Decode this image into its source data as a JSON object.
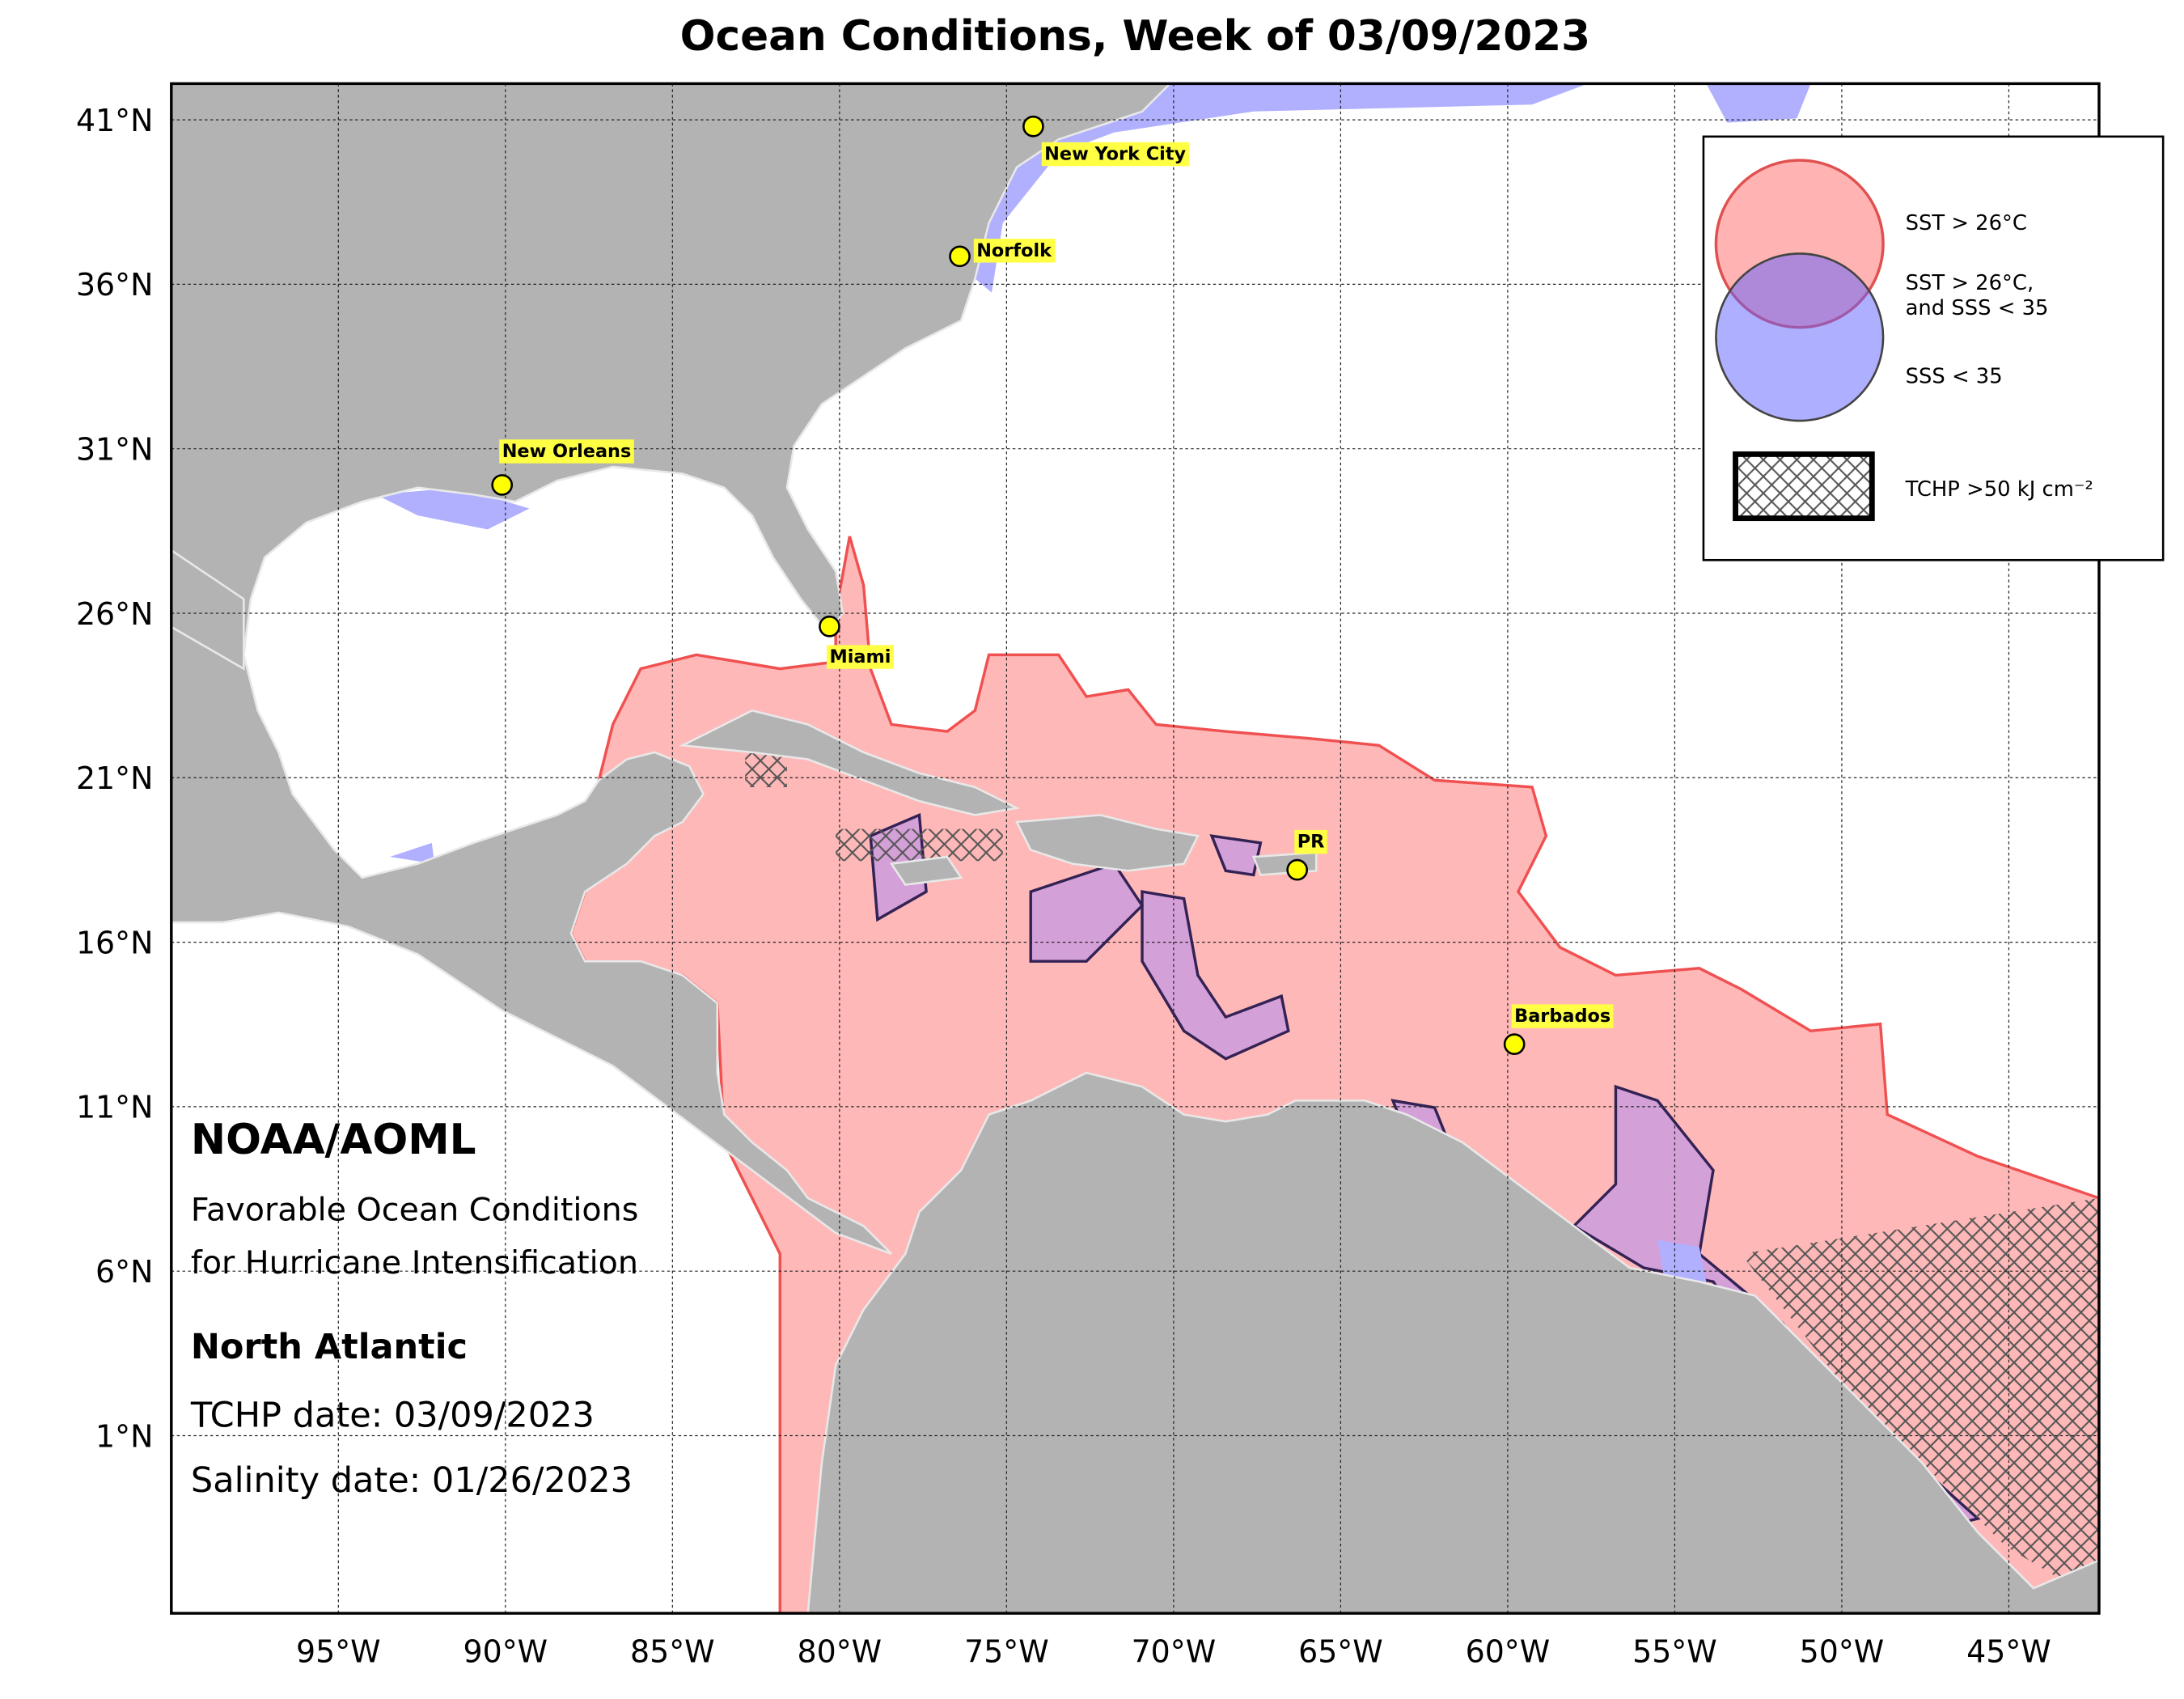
{
  "title": "Ocean Conditions, Week of 03/09/2023",
  "map": {
    "lon_range": [
      -100,
      -42.3
    ],
    "lat_range": [
      -4.4,
      42.1
    ],
    "lon_ticks": [
      {
        "value": -95,
        "label": "95°W"
      },
      {
        "value": -90,
        "label": "90°W"
      },
      {
        "value": -85,
        "label": "85°W"
      },
      {
        "value": -80,
        "label": "80°W"
      },
      {
        "value": -75,
        "label": "75°W"
      },
      {
        "value": -70,
        "label": "70°W"
      },
      {
        "value": -65,
        "label": "65°W"
      },
      {
        "value": -60,
        "label": "60°W"
      },
      {
        "value": -55,
        "label": "55°W"
      },
      {
        "value": -50,
        "label": "50°W"
      },
      {
        "value": -45,
        "label": "45°W"
      }
    ],
    "lat_ticks": [
      {
        "value": 41,
        "label": "41°N"
      },
      {
        "value": 36,
        "label": "36°N"
      },
      {
        "value": 31,
        "label": "31°N"
      },
      {
        "value": 26,
        "label": "26°N"
      },
      {
        "value": 21,
        "label": "21°N"
      },
      {
        "value": 16,
        "label": "16°N"
      },
      {
        "value": 11,
        "label": "11°N"
      },
      {
        "value": 6,
        "label": "6°N"
      },
      {
        "value": 1,
        "label": "1°N"
      }
    ]
  },
  "cities": [
    {
      "name": "New York City",
      "lon": -74.2,
      "lat": 40.8
    },
    {
      "name": "Norfolk",
      "lon": -76.4,
      "lat": 36.85
    },
    {
      "name": "New Orleans",
      "lon": -90.1,
      "lat": 29.9
    },
    {
      "name": "Miami",
      "lon": -80.3,
      "lat": 25.6
    },
    {
      "name": "PR",
      "lon": -66.3,
      "lat": 18.2
    },
    {
      "name": "Barbados",
      "lon": -59.8,
      "lat": 12.9
    }
  ],
  "legend": {
    "sst": "SST > 26°C",
    "both": [
      "SST > 26°C,",
      "and SSS < 35"
    ],
    "sss": "SSS < 35",
    "tchp": "TCHP >50 kJ cm⁻²"
  },
  "info": {
    "org": "NOAA/AOML",
    "description": [
      "Favorable Ocean Conditions",
      "for Hurricane Intensification"
    ],
    "region": "North Atlantic",
    "tchp_date": "TCHP date: 03/09/2023",
    "salinity_date": "Salinity date: 01/26/2023"
  }
}
